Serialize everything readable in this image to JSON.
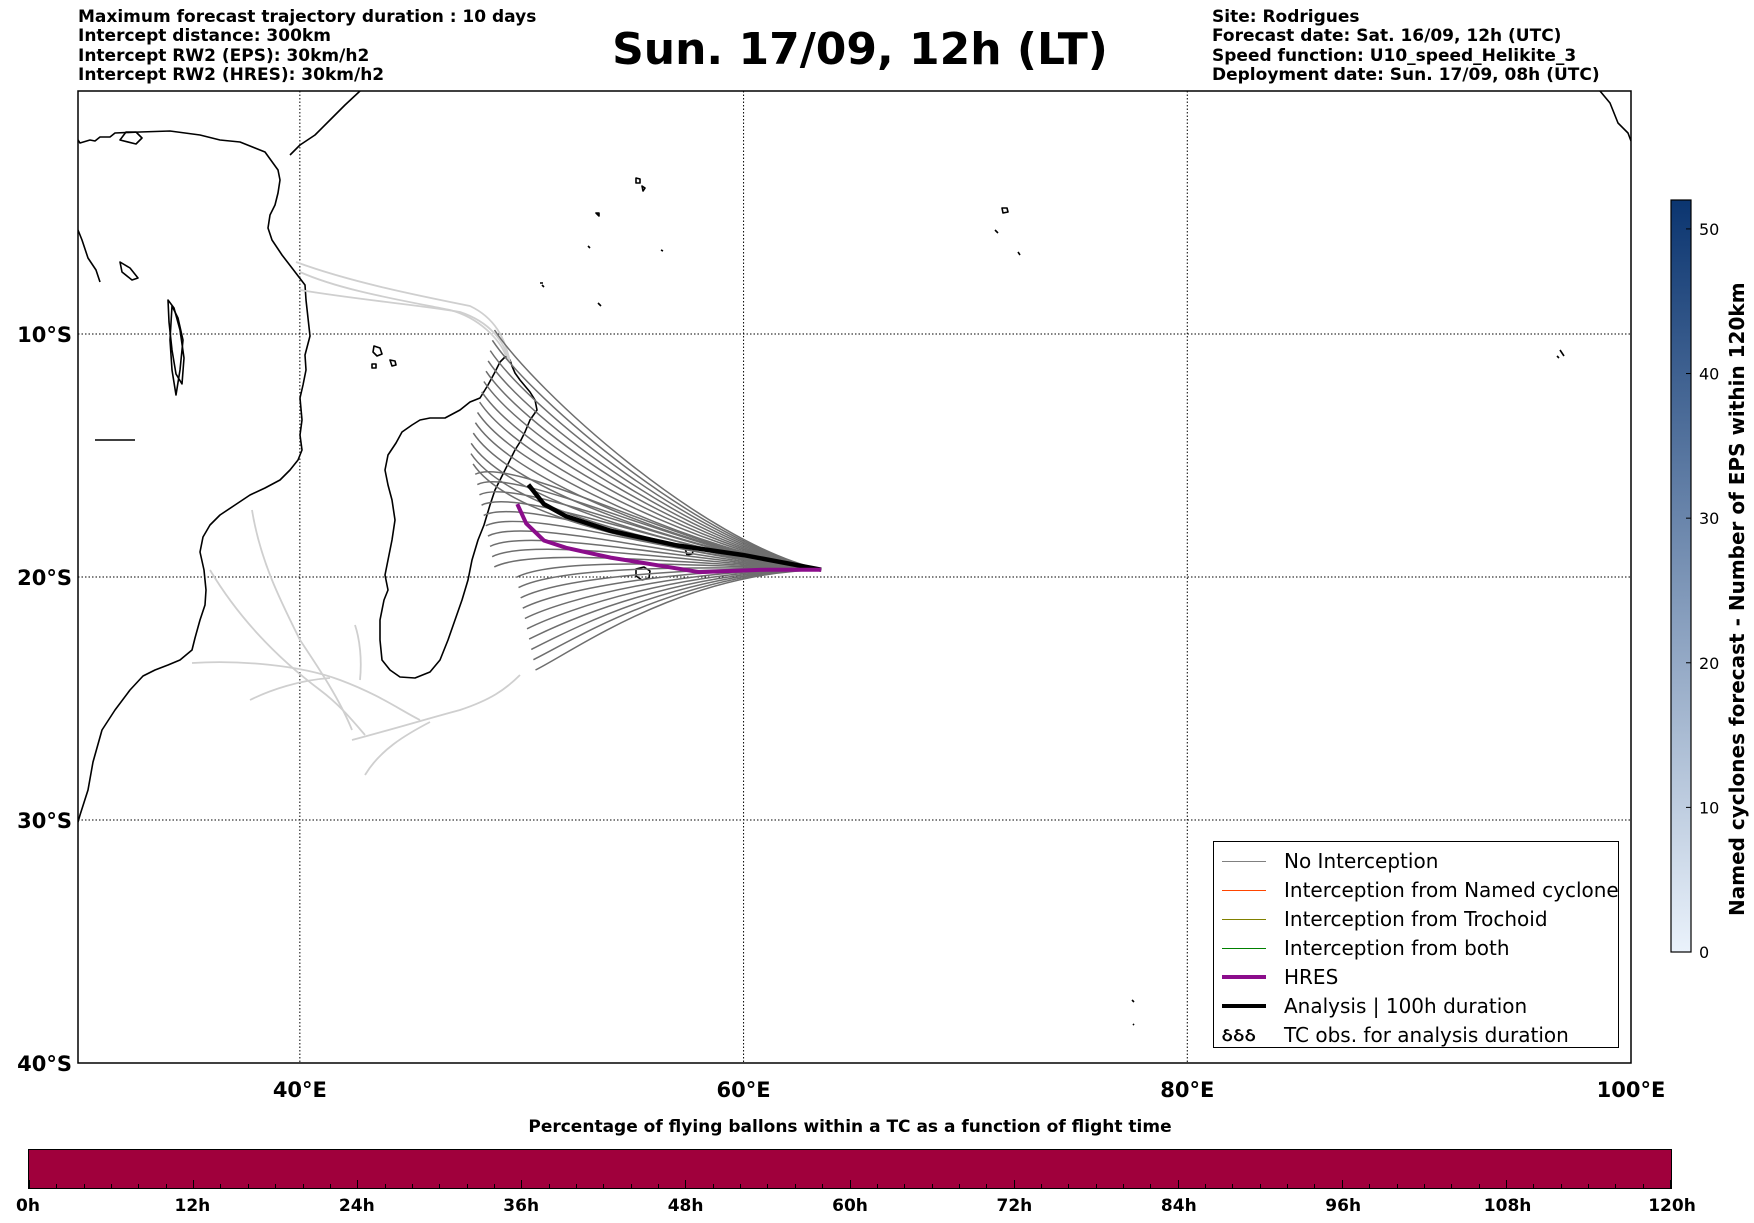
{
  "header": {
    "left_lines": [
      "Maximum forecast trajectory duration : 10 days",
      "Intercept distance: 300km",
      "Intercept RW2 (EPS):  30km/h2",
      "Intercept RW2 (HRES): 30km/h2"
    ],
    "title": "Sun. 17/09, 12h (LT)",
    "right_lines": [
      "Site: Rodrigues",
      "Forecast date: Sat. 16/09, 12h (UTC)",
      "Speed function: U10_speed_Helikite_3",
      "Deployment date: Sun. 17/09, 08h (UTC)"
    ]
  },
  "map": {
    "lon_range": [
      30,
      100
    ],
    "lat_range": [
      -40,
      0
    ],
    "lat_labels": [
      {
        "lat": -10,
        "text": "10°S"
      },
      {
        "lat": -20,
        "text": "20°S"
      },
      {
        "lat": -30,
        "text": "30°S"
      },
      {
        "lat": -40,
        "text": "40°S"
      }
    ],
    "lon_labels": [
      {
        "lon": 40,
        "text": "40°E"
      },
      {
        "lon": 60,
        "text": "60°E"
      },
      {
        "lon": 80,
        "text": "80°E"
      },
      {
        "lon": 100,
        "text": "100°E"
      }
    ],
    "grid": true,
    "colors": {
      "no_interception": "#6e6e6e",
      "faded_trajectory": "#cfcfcf",
      "hres": "#8b0d8b",
      "analysis": "#000000",
      "coast": "#000000"
    }
  },
  "legend": {
    "items": [
      {
        "label": "No Interception",
        "color": "#808080",
        "width": 1.5
      },
      {
        "label": "Interception from Named cyclone",
        "color": "#ff4500",
        "width": 1.5
      },
      {
        "label": "Interception from Trochoid",
        "color": "#808000",
        "width": 1.5
      },
      {
        "label": "Interception from both",
        "color": "#008000",
        "width": 1.5
      },
      {
        "label": "HRES",
        "color": "#8b0d8b",
        "width": 4
      },
      {
        "label": "Analysis | 100h duration",
        "color": "#000000",
        "width": 4
      }
    ],
    "tc_label": "TC obs. for analysis duration",
    "tc_glyph": "ઠઠઠ"
  },
  "colorbar": {
    "title": "Named cyclones forecast - Number of EPS within 120km",
    "range": [
      0,
      52
    ],
    "ticks": [
      "0",
      "10",
      "20",
      "30",
      "40",
      "50"
    ],
    "tick_values": [
      0,
      10,
      20,
      30,
      40,
      50
    ],
    "color_low": "#eaf2fb",
    "color_high": "#0b3570"
  },
  "timebar": {
    "title": "Percentage of flying ballons within a TC as a function of flight time",
    "color": "#a0003c",
    "labels": [
      "0h",
      "12h",
      "24h",
      "36h",
      "48h",
      "60h",
      "72h",
      "84h",
      "96h",
      "108h",
      "120h"
    ],
    "max_hours": 120
  },
  "chart_data": {
    "type": "line",
    "release_point": {
      "lon": 63.5,
      "lat": -19.7
    },
    "series": [
      {
        "name": "HRES",
        "points": [
          [
            63.5,
            -19.7
          ],
          [
            61,
            -19.7
          ],
          [
            58,
            -19.8
          ],
          [
            56,
            -19.5
          ],
          [
            54,
            -19.2
          ],
          [
            52,
            -18.8
          ],
          [
            51,
            -18.5
          ],
          [
            50.2,
            -17.8
          ],
          [
            49.8,
            -17.0
          ]
        ]
      },
      {
        "name": "Analysis | 100h duration",
        "points": [
          [
            63.5,
            -19.7
          ],
          [
            60,
            -19.1
          ],
          [
            57,
            -18.7
          ],
          [
            54,
            -18.1
          ],
          [
            52,
            -17.5
          ],
          [
            51,
            -17.0
          ],
          [
            50.3,
            -16.2
          ]
        ]
      }
    ]
  }
}
